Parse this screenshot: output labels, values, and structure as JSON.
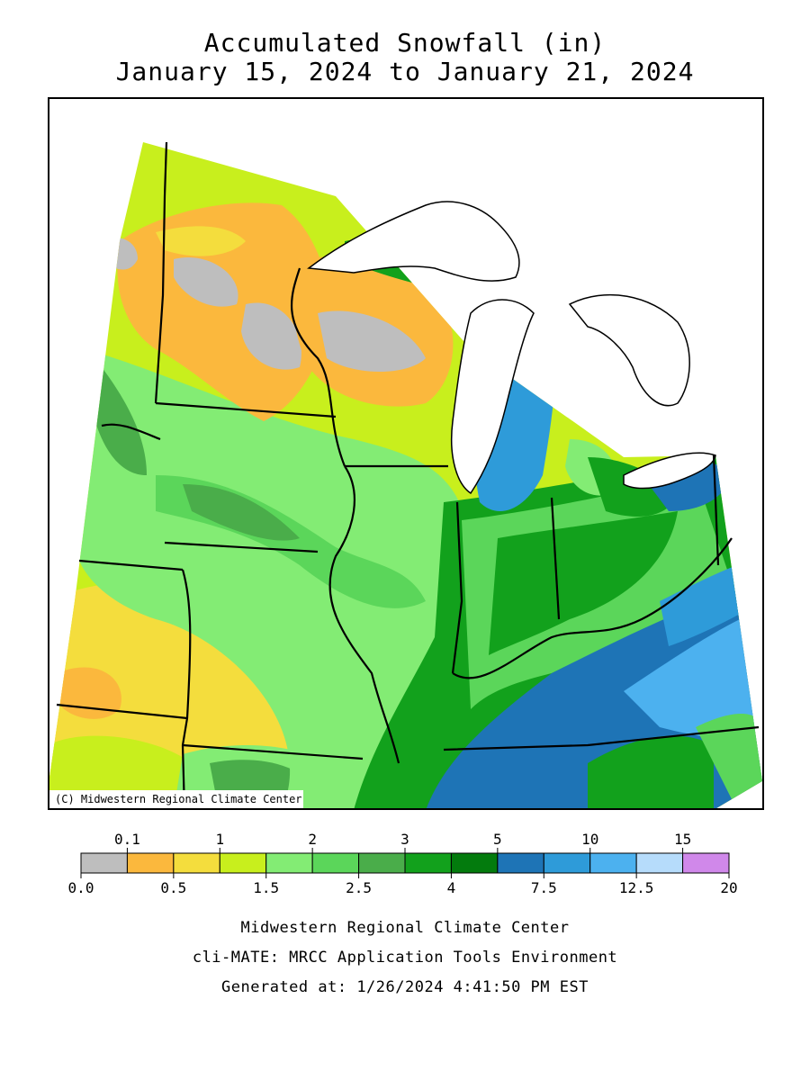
{
  "title": {
    "line1": "Accumulated Snowfall (in)",
    "line2": "January 15, 2024 to January 21, 2024"
  },
  "map": {
    "copyright": "(C) Midwestern Regional Climate Center"
  },
  "legend": {
    "top_labels": [
      "0.1",
      "1",
      "2",
      "3",
      "5",
      "10",
      "15"
    ],
    "bottom_labels": [
      "0.0",
      "0.5",
      "1.5",
      "2.5",
      "4",
      "7.5",
      "12.5",
      "20"
    ],
    "bins": [
      {
        "from": 0.0,
        "to": 0.1,
        "color": "#bebebe"
      },
      {
        "from": 0.1,
        "to": 0.5,
        "color": "#fbb83d"
      },
      {
        "from": 0.5,
        "to": 1,
        "color": "#f4dd3d"
      },
      {
        "from": 1,
        "to": 1.5,
        "color": "#c8ef1d"
      },
      {
        "from": 1.5,
        "to": 2,
        "color": "#83ec74"
      },
      {
        "from": 2,
        "to": 2.5,
        "color": "#5bd65a"
      },
      {
        "from": 2.5,
        "to": 3,
        "color": "#4aad4a"
      },
      {
        "from": 3,
        "to": 4,
        "color": "#12a11c"
      },
      {
        "from": 4,
        "to": 5,
        "color": "#037b0d"
      },
      {
        "from": 5,
        "to": 7.5,
        "color": "#1e74b6"
      },
      {
        "from": 7.5,
        "to": 10,
        "color": "#2e9bd9"
      },
      {
        "from": 10,
        "to": 12.5,
        "color": "#4cb1ef"
      },
      {
        "from": 12.5,
        "to": 15,
        "color": "#b6dcfb"
      },
      {
        "from": 15,
        "to": 20,
        "color": "#d088ea"
      }
    ]
  },
  "footer": {
    "line1": "Midwestern Regional Climate Center",
    "line2": "cli-MATE: MRCC Application Tools Environment",
    "line3": "Generated at: 1/26/2024 4:41:50 PM EST"
  }
}
